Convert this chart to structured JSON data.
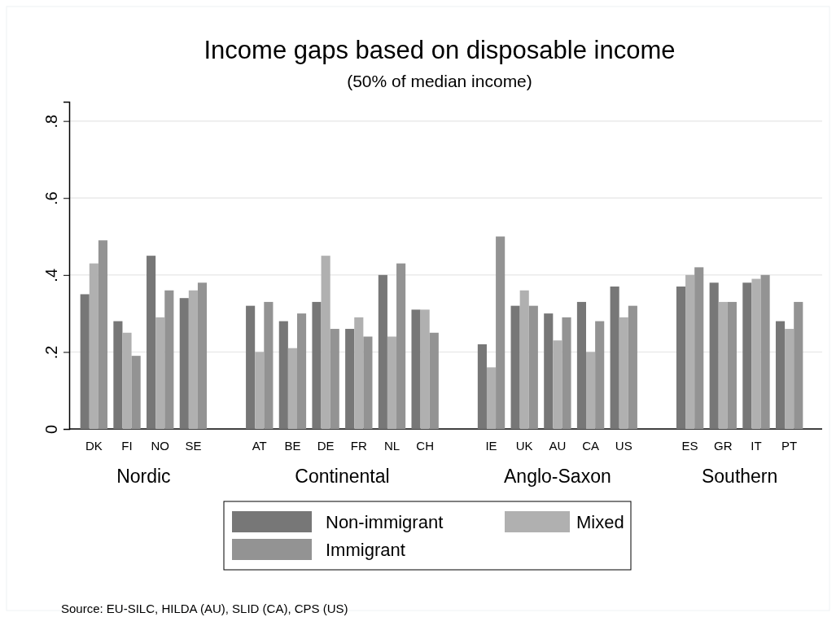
{
  "chart_data": {
    "type": "bar",
    "title": "Income gaps based on disposable income",
    "subtitle": "(50% of median income)",
    "categories": [
      "DK",
      "FI",
      "NO",
      "SE",
      null,
      "AT",
      "BE",
      "DE",
      "FR",
      "NL",
      "CH",
      null,
      "IE",
      "UK",
      "AU",
      "CA",
      "US",
      null,
      "ES",
      "GR",
      "IT",
      "PT"
    ],
    "series": [
      {
        "name": "Non-immigrant",
        "color": "#777777",
        "values": [
          0.35,
          0.28,
          0.45,
          0.34,
          null,
          0.32,
          0.28,
          0.33,
          0.26,
          0.4,
          0.31,
          null,
          0.22,
          0.32,
          0.3,
          0.33,
          0.37,
          null,
          0.37,
          0.38,
          0.38,
          0.28
        ]
      },
      {
        "name": "Mixed",
        "color": "#b0b0b0",
        "values": [
          0.43,
          0.25,
          0.29,
          0.36,
          null,
          0.2,
          0.21,
          0.45,
          0.29,
          0.24,
          0.31,
          null,
          0.16,
          0.36,
          0.23,
          0.2,
          0.29,
          null,
          0.4,
          0.33,
          0.39,
          0.26
        ]
      },
      {
        "name": "Immigrant",
        "color": "#939393",
        "values": [
          0.49,
          0.19,
          0.36,
          0.38,
          null,
          0.33,
          0.3,
          0.26,
          0.24,
          0.43,
          0.25,
          null,
          0.5,
          0.32,
          0.29,
          0.28,
          0.32,
          null,
          0.42,
          0.33,
          0.4,
          0.33
        ]
      }
    ],
    "ylim": [
      0,
      0.85
    ],
    "yticks": [
      0,
      {
        "value": 0.2,
        "label": ".2"
      },
      {
        "value": 0.4,
        "label": ".4"
      },
      {
        "value": 0.6,
        "label": ".6"
      },
      {
        "value": 0.8,
        "label": ".8"
      }
    ],
    "grid": "y",
    "legend": "bottom",
    "annotations": [
      "Nordic",
      "Continental",
      "Anglo-Saxon",
      "Southern",
      "Source: EU-SILC, HILDA (AU), SLID (CA), CPS (US)"
    ]
  }
}
